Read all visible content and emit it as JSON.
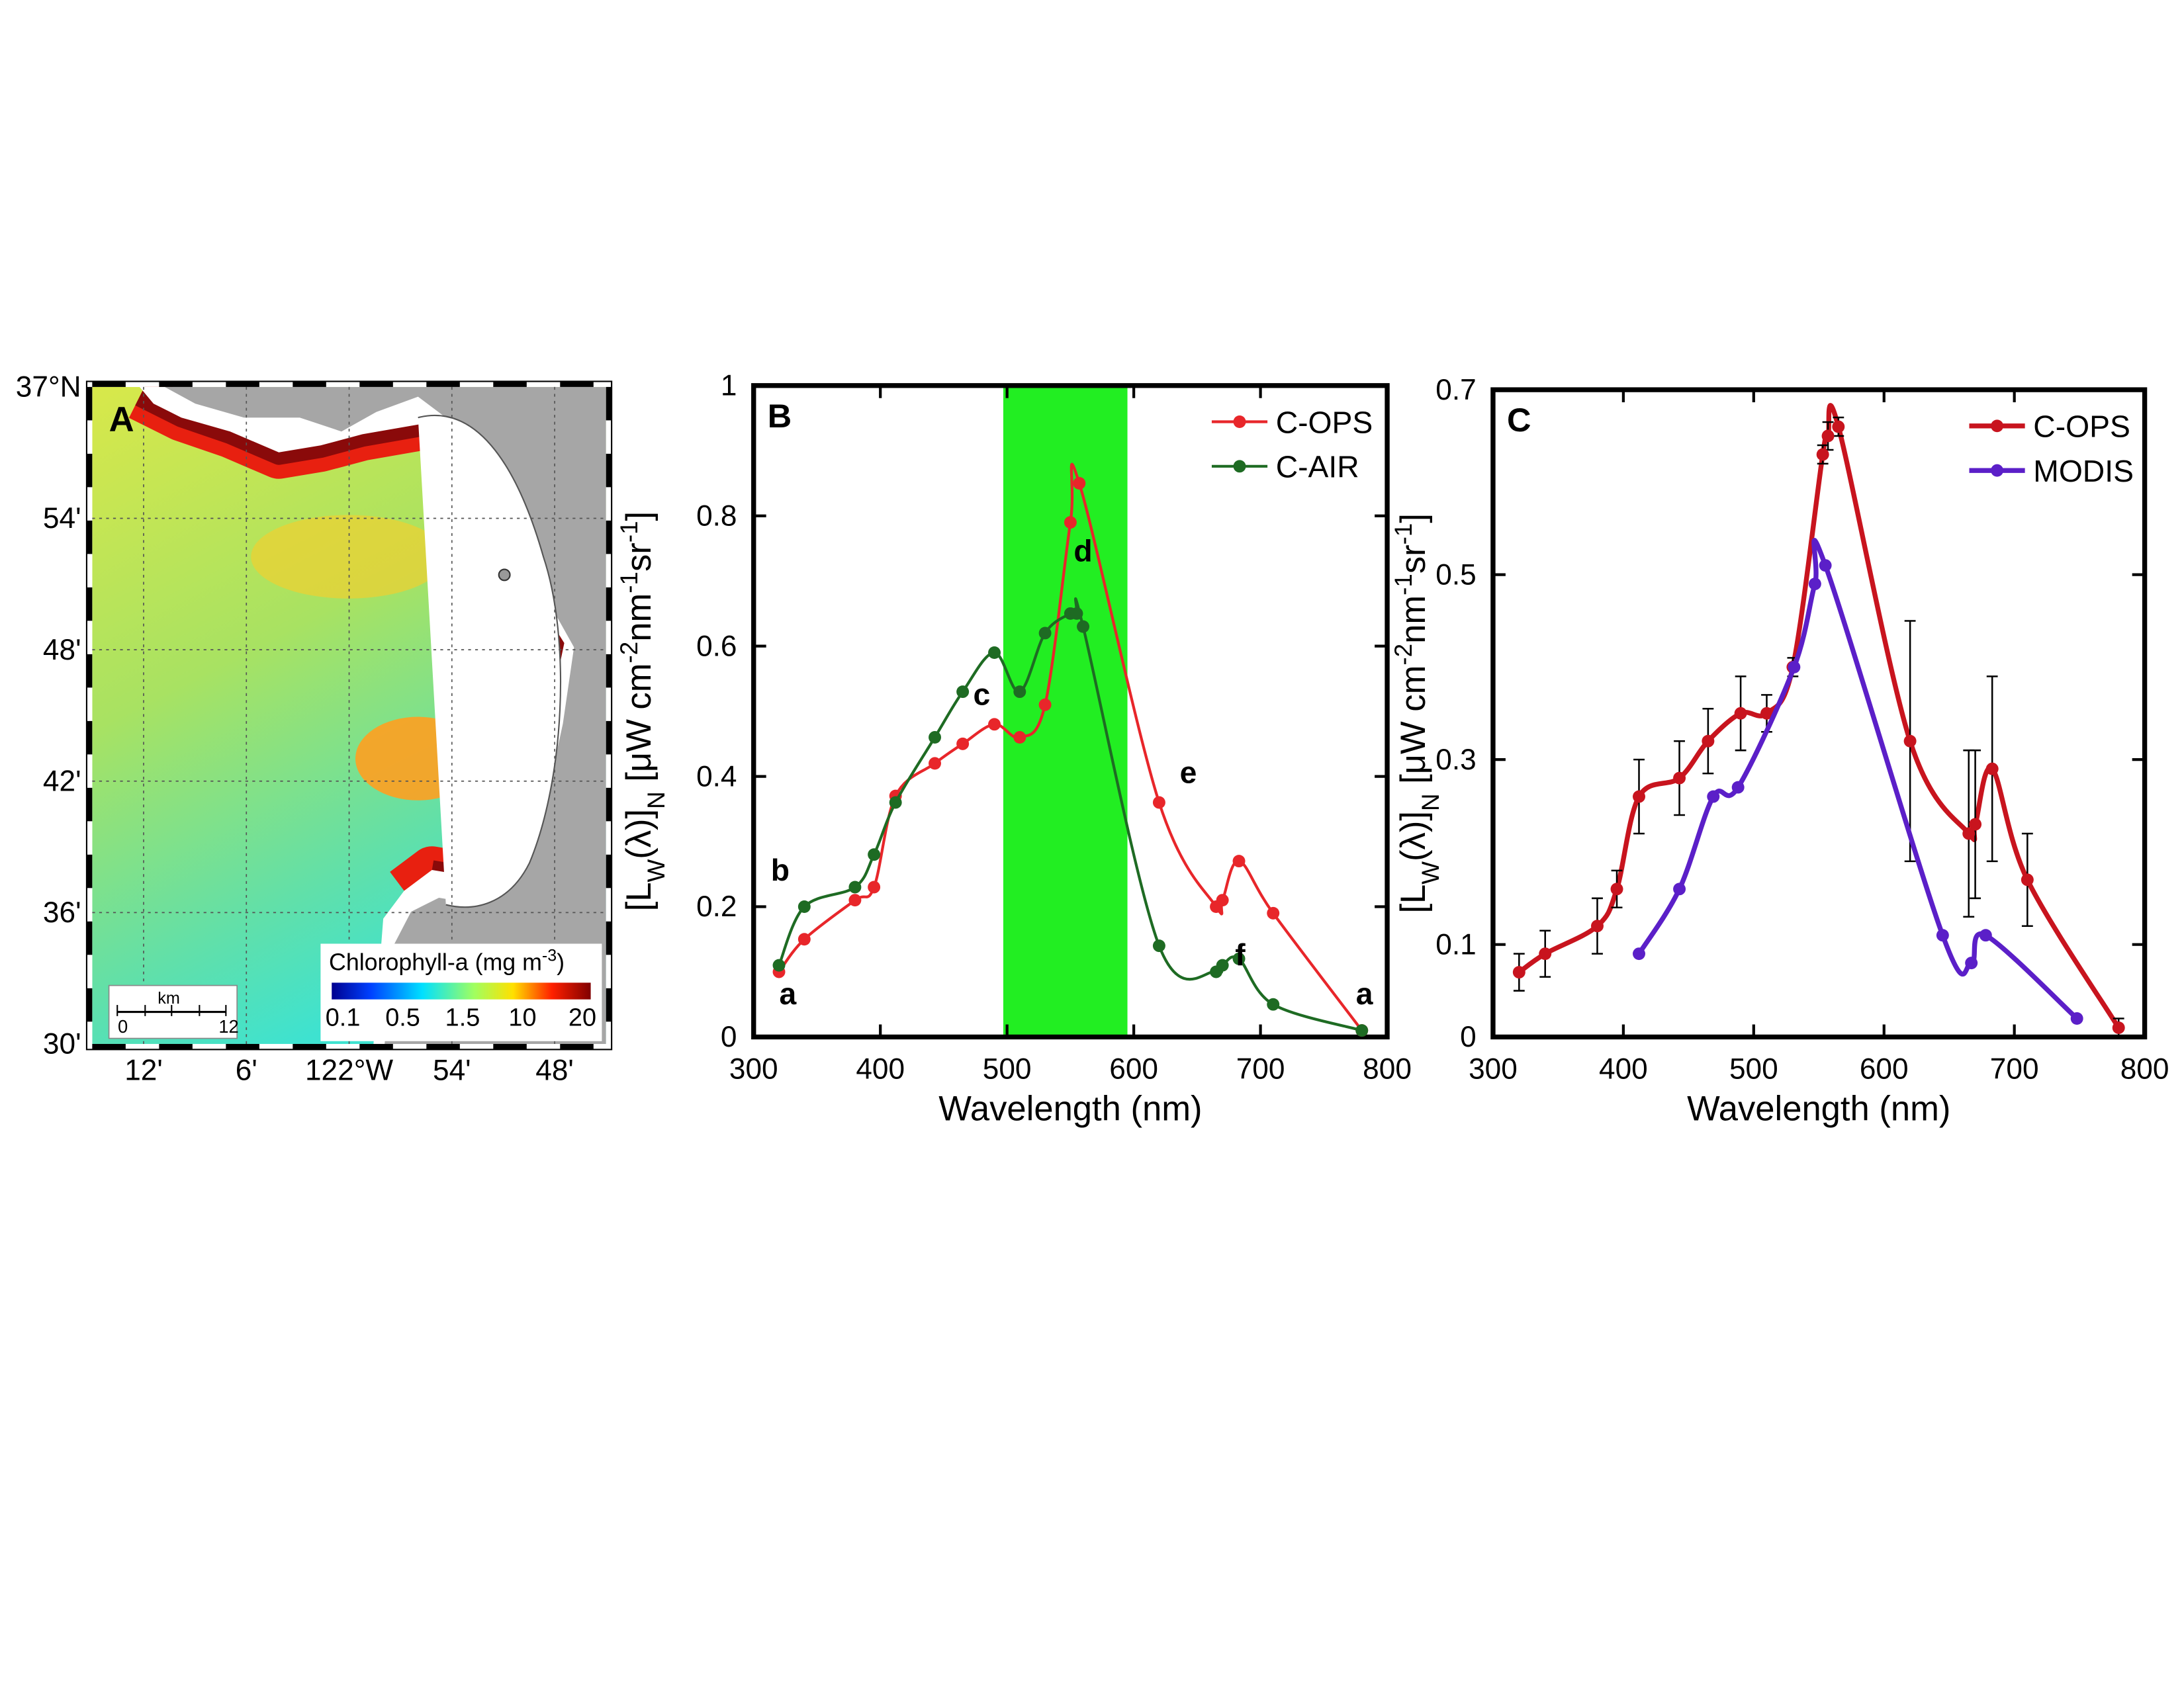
{
  "chart_data": [
    {
      "type": "map",
      "panel_label": "A",
      "lat_labels": [
        "37°N",
        "54'",
        "48'",
        "42'",
        "36'",
        "30'"
      ],
      "lon_labels": [
        "12'",
        "6'",
        "122°W",
        "54'",
        "48'"
      ],
      "colorbar_title": [
        "Chlorophyll-a (mg m",
        "-3",
        ")"
      ],
      "colorbar_labels": [
        0.1,
        0.5,
        1.5,
        10,
        20
      ],
      "scale_label": "km",
      "scale_ticks": [
        0,
        12
      ]
    },
    {
      "type": "line",
      "panel_label": "B",
      "x_label": "Wavelength (nm)",
      "y_label": [
        "[L",
        "W",
        "(λ)]",
        "N",
        " [μW cm",
        "-2",
        "nm",
        "-1",
        "sr",
        "-1",
        "]"
      ],
      "xlim": [
        300,
        800
      ],
      "xticks": [
        300,
        400,
        500,
        600,
        700,
        800
      ],
      "ylim": [
        0,
        1
      ],
      "yticks": [
        0,
        0.2,
        0.4,
        0.6,
        0.8,
        1
      ],
      "band": [
        497,
        595
      ],
      "band_color": "#22ee22",
      "legend": "top-right",
      "series": [
        {
          "name": "C-OPS",
          "color": "#e8262a",
          "x": [
            320,
            340,
            380,
            395,
            412,
            443,
            465,
            490,
            510,
            530,
            550,
            557,
            620,
            665,
            670,
            683,
            710,
            780
          ],
          "values": [
            0.1,
            0.15,
            0.21,
            0.23,
            0.37,
            0.42,
            0.45,
            0.48,
            0.46,
            0.51,
            0.79,
            0.85,
            0.36,
            0.2,
            0.21,
            0.27,
            0.19,
            0.01
          ]
        },
        {
          "name": "C-AIR",
          "color": "#1e6b23",
          "x": [
            320,
            340,
            380,
            395,
            412,
            443,
            465,
            490,
            510,
            530,
            550,
            555,
            560,
            620,
            665,
            670,
            683,
            710,
            780
          ],
          "values": [
            0.11,
            0.2,
            0.23,
            0.28,
            0.36,
            0.46,
            0.53,
            0.59,
            0.53,
            0.62,
            0.65,
            0.65,
            0.63,
            0.14,
            0.1,
            0.11,
            0.12,
            0.05,
            0.01
          ]
        }
      ],
      "annotations": [
        "a",
        "b",
        "c",
        "d",
        "e",
        "f",
        "a"
      ]
    },
    {
      "type": "line",
      "panel_label": "C",
      "x_label": "Wavelength (nm)",
      "y_label": [
        "[L",
        "W",
        "(λ)]",
        "N",
        " [μW cm",
        "-2",
        "nm",
        "-1",
        "sr",
        "-1",
        "]"
      ],
      "xlim": [
        300,
        800
      ],
      "xticks": [
        300,
        400,
        500,
        600,
        700,
        800
      ],
      "ylim": [
        0,
        0.7
      ],
      "yticks": [
        0,
        0.1,
        0.3,
        0.5,
        0.7
      ],
      "legend": "top-right",
      "series": [
        {
          "name": "C-OPS",
          "color": "#c8141e",
          "x": [
            320,
            340,
            380,
            395,
            412,
            443,
            465,
            490,
            510,
            530,
            553,
            557,
            565,
            620,
            665,
            670,
            683,
            710,
            780
          ],
          "values": [
            0.07,
            0.09,
            0.12,
            0.16,
            0.26,
            0.28,
            0.32,
            0.35,
            0.35,
            0.4,
            0.63,
            0.65,
            0.66,
            0.32,
            0.22,
            0.23,
            0.29,
            0.17,
            0.01
          ],
          "errors": [
            0.02,
            0.025,
            0.03,
            0.02,
            0.04,
            0.04,
            0.035,
            0.04,
            0.02,
            0.01,
            0.01,
            0.015,
            0.01,
            0.13,
            0.09,
            0.08,
            0.1,
            0.05,
            0.01
          ]
        },
        {
          "name": "MODIS",
          "color": "#5b1fc8",
          "x": [
            412,
            443,
            469,
            488,
            531,
            547,
            555,
            645,
            667,
            678,
            748
          ],
          "values": [
            0.09,
            0.16,
            0.26,
            0.27,
            0.4,
            0.49,
            0.51,
            0.11,
            0.08,
            0.11,
            0.02
          ]
        }
      ]
    }
  ]
}
